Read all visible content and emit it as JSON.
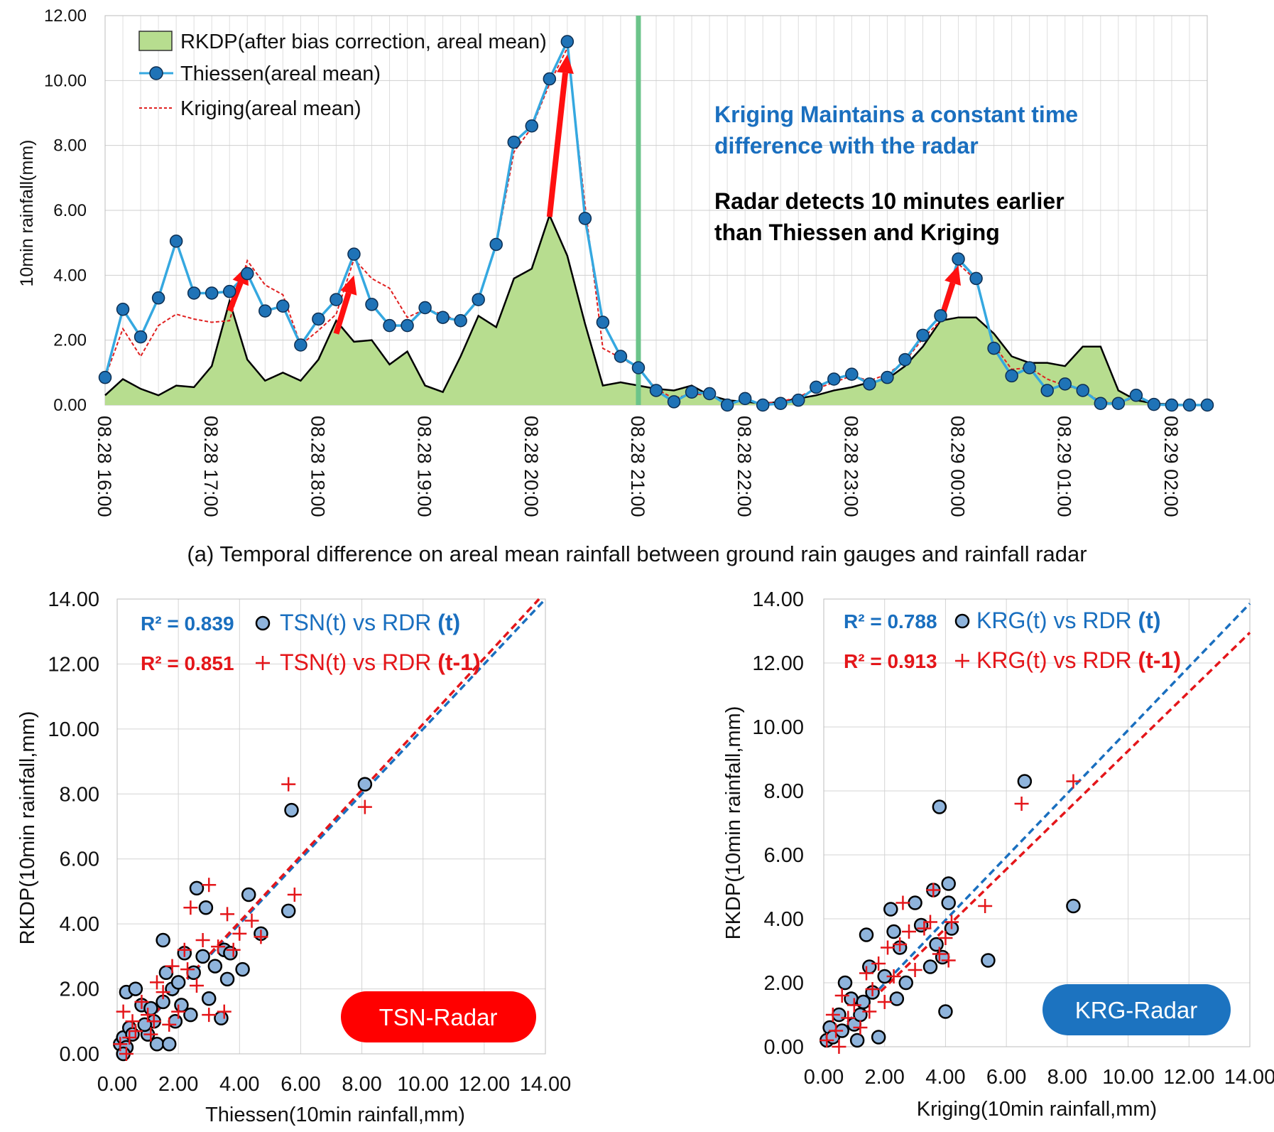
{
  "caption": "(a) Temporal difference on areal mean rainfall between ground rain gauges and rainfall radar",
  "colors": {
    "rkdp_fill": "#b7dd8f",
    "rkdp_line": "#000000",
    "thiessen": "#35a8e0",
    "thiessen_marker": "#1f73b7",
    "kriging": "#e02020",
    "arrow": "#ff1010",
    "blue_text": "#1a6fbf",
    "red_text": "#e4161a",
    "vline": "#6cc48a",
    "tsn_badge": "#ff0000",
    "krg_badge": "#1c73c0",
    "point_fill": "#8fb4dc"
  },
  "chart_data": [
    {
      "type": "area",
      "name": "timeseries",
      "ylabel": "10min rainfall(mm)",
      "ylim": [
        0,
        12
      ],
      "yticks": [
        "0.00",
        "2.00",
        "4.00",
        "6.00",
        "8.00",
        "10.00",
        "12.00"
      ],
      "xticks": [
        "08.28 16:00",
        "08.28 17:00",
        "08.28 18:00",
        "08.28 19:00",
        "08.28 20:00",
        "08.28 21:00",
        "08.28 22:00",
        "08.28 23:00",
        "08.29 00:00",
        "08.29 01:00",
        "08.29 02:00"
      ],
      "legend": [
        "RKDP(after bias correction, areal mean)",
        "Thiessen(areal mean)",
        "Kriging(areal mean)"
      ],
      "series": [
        {
          "name": "RKDP",
          "values": [
            0.3,
            0.8,
            0.5,
            0.3,
            0.6,
            0.55,
            1.2,
            3.2,
            1.4,
            0.75,
            1.0,
            0.75,
            1.4,
            2.6,
            1.95,
            2.0,
            1.25,
            1.65,
            0.6,
            0.4,
            1.5,
            2.75,
            2.4,
            3.9,
            4.2,
            5.85,
            4.6,
            2.5,
            0.6,
            0.7,
            0.6,
            0.5,
            0.45,
            0.6,
            0.3,
            0.15,
            0.1,
            0.05,
            0.1,
            0.2,
            0.3,
            0.45,
            0.55,
            0.7,
            0.8,
            1.2,
            1.8,
            2.6,
            2.7,
            2.7,
            2.2,
            1.5,
            1.3,
            1.3,
            1.2,
            1.8,
            1.8,
            0.45,
            0.15,
            0.05,
            0.02,
            0.0,
            0.0
          ]
        },
        {
          "name": "Thiessen",
          "values": [
            0.85,
            2.95,
            2.1,
            3.3,
            5.05,
            3.45,
            3.45,
            3.5,
            4.05,
            2.9,
            3.05,
            1.85,
            2.65,
            3.25,
            4.65,
            3.1,
            2.45,
            2.45,
            3.0,
            2.7,
            2.6,
            3.25,
            4.95,
            8.1,
            8.6,
            10.05,
            11.2,
            5.75,
            2.55,
            1.5,
            1.15,
            0.45,
            0.1,
            0.4,
            0.35,
            0.0,
            0.2,
            0.0,
            0.05,
            0.15,
            0.55,
            0.8,
            0.95,
            0.65,
            0.85,
            1.4,
            2.15,
            2.75,
            4.5,
            3.9,
            1.75,
            0.9,
            1.15,
            0.45,
            0.65,
            0.45,
            0.05,
            0.05,
            0.3,
            0.02,
            0.0,
            0.0,
            0.0
          ]
        },
        {
          "name": "Kriging",
          "values": [
            0.85,
            2.35,
            1.5,
            2.45,
            2.8,
            2.65,
            2.55,
            2.6,
            4.45,
            3.7,
            3.4,
            1.85,
            2.3,
            2.8,
            4.5,
            3.9,
            3.6,
            2.7,
            2.95,
            2.8,
            2.55,
            3.3,
            4.9,
            7.8,
            8.55,
            9.9,
            11.0,
            6.15,
            1.75,
            1.45,
            1.15,
            0.5,
            0.2,
            0.35,
            0.3,
            0.05,
            0.15,
            0.05,
            0.1,
            0.25,
            0.5,
            0.7,
            0.9,
            0.75,
            0.95,
            1.35,
            2.05,
            2.6,
            4.35,
            3.85,
            1.85,
            1.1,
            1.15,
            0.8,
            0.6,
            0.45,
            0.1,
            0.05,
            0.25,
            0.05,
            0.0,
            0.0,
            0.0
          ]
        }
      ],
      "vline_at": 30,
      "arrows": [
        {
          "from": [
            7,
            2.9
          ],
          "to": [
            8,
            4.3
          ]
        },
        {
          "from": [
            13,
            2.2
          ],
          "to": [
            14,
            4.0
          ]
        },
        {
          "from": [
            25,
            5.8
          ],
          "to": [
            26,
            10.8
          ]
        },
        {
          "from": [
            47,
            2.6
          ],
          "to": [
            48,
            4.3
          ]
        }
      ],
      "annotations": {
        "blue_line1": "Kriging Maintains a constant time",
        "blue_line2": "difference with the radar",
        "black_line1": "Radar detects 10 minutes earlier",
        "black_line2": "than Thiessen and Kriging"
      }
    },
    {
      "type": "scatter",
      "name": "tsn",
      "xlabel": "Thiessen(10min rainfall,mm)",
      "ylabel": "RKDP(10min rainfall,mm)",
      "xlim": [
        0,
        14
      ],
      "ylim": [
        0,
        14
      ],
      "ticks": [
        "0.00",
        "2.00",
        "4.00",
        "6.00",
        "8.00",
        "10.00",
        "12.00",
        "14.00"
      ],
      "badge": "TSN-Radar",
      "legend": [
        {
          "r2": "R² = 0.839",
          "label": "TSN(t) vs RDR ",
          "suffix": "(t)"
        },
        {
          "r2": "R² = 0.851",
          "label": "TSN(t) vs RDR ",
          "suffix": "(t-1)"
        }
      ],
      "trend": [
        {
          "series": "t",
          "slope": 1.0,
          "intercept": 0.0
        },
        {
          "series": "t-1",
          "slope": 1.015,
          "intercept": 0.0
        }
      ],
      "series": [
        {
          "name": "TSN(t) vs RDR (t)",
          "points": [
            [
              0.1,
              0.3
            ],
            [
              0.2,
              0.5
            ],
            [
              0.3,
              0.2
            ],
            [
              0.4,
              0.8
            ],
            [
              0.5,
              0.6
            ],
            [
              0.3,
              1.9
            ],
            [
              0.6,
              2.0
            ],
            [
              0.8,
              1.5
            ],
            [
              1.0,
              0.6
            ],
            [
              1.2,
              1.0
            ],
            [
              1.3,
              0.3
            ],
            [
              1.5,
              1.6
            ],
            [
              1.5,
              3.5
            ],
            [
              1.6,
              2.5
            ],
            [
              1.7,
              0.3
            ],
            [
              1.8,
              2.0
            ],
            [
              2.0,
              2.2
            ],
            [
              2.2,
              3.1
            ],
            [
              2.4,
              1.2
            ],
            [
              2.5,
              2.5
            ],
            [
              2.6,
              5.1
            ],
            [
              2.8,
              3.0
            ],
            [
              2.9,
              4.5
            ],
            [
              3.0,
              1.7
            ],
            [
              3.2,
              2.7
            ],
            [
              3.4,
              1.1
            ],
            [
              3.5,
              3.2
            ],
            [
              3.6,
              2.3
            ],
            [
              3.7,
              3.1
            ],
            [
              4.1,
              2.6
            ],
            [
              4.3,
              4.9
            ],
            [
              4.7,
              3.7
            ],
            [
              5.6,
              4.4
            ],
            [
              5.7,
              7.5
            ],
            [
              8.1,
              8.3
            ],
            [
              0.2,
              0.0
            ],
            [
              0.9,
              0.9
            ],
            [
              1.1,
              1.4
            ],
            [
              2.1,
              1.5
            ],
            [
              1.9,
              1.0
            ]
          ]
        },
        {
          "name": "TSN(t) vs RDR (t-1)",
          "points": [
            [
              0.1,
              0.3
            ],
            [
              0.2,
              1.3
            ],
            [
              0.4,
              0.5
            ],
            [
              0.5,
              1.0
            ],
            [
              0.6,
              0.7
            ],
            [
              0.8,
              1.6
            ],
            [
              1.0,
              1.2
            ],
            [
              1.2,
              1.0
            ],
            [
              1.3,
              2.2
            ],
            [
              1.5,
              1.9
            ],
            [
              1.7,
              0.9
            ],
            [
              1.8,
              2.7
            ],
            [
              2.0,
              1.3
            ],
            [
              2.2,
              3.2
            ],
            [
              2.4,
              4.5
            ],
            [
              2.6,
              2.1
            ],
            [
              2.8,
              3.5
            ],
            [
              3.0,
              5.2
            ],
            [
              3.0,
              1.2
            ],
            [
              3.3,
              3.3
            ],
            [
              3.5,
              1.3
            ],
            [
              3.6,
              4.3
            ],
            [
              3.8,
              3.2
            ],
            [
              4.0,
              3.7
            ],
            [
              4.4,
              4.1
            ],
            [
              4.7,
              3.6
            ],
            [
              5.6,
              8.3
            ],
            [
              5.8,
              4.9
            ],
            [
              8.1,
              7.6
            ],
            [
              0.3,
              0.0
            ],
            [
              1.1,
              0.6
            ],
            [
              2.3,
              2.6
            ]
          ]
        }
      ]
    },
    {
      "type": "scatter",
      "name": "krg",
      "xlabel": "Kriging(10min rainfall,mm)",
      "ylabel": "RKDP(10min rainfall,mm)",
      "xlim": [
        0,
        14
      ],
      "ylim": [
        0,
        14
      ],
      "ticks": [
        "0.00",
        "2.00",
        "4.00",
        "6.00",
        "8.00",
        "10.00",
        "12.00",
        "14.00"
      ],
      "badge": "KRG-Radar",
      "legend": [
        {
          "r2": "R² = 0.788",
          "label": "KRG(t)  vs RDR ",
          "suffix": "(t)"
        },
        {
          "r2": "R² = 0.913",
          "label": "KRG(t)  vs RDR ",
          "suffix": "(t-1)"
        }
      ],
      "trend": [
        {
          "series": "t",
          "slope": 0.99,
          "intercept": 0.0
        },
        {
          "series": "t-1",
          "slope": 0.925,
          "intercept": 0.0
        }
      ],
      "series": [
        {
          "name": "KRG(t) vs RDR (t)",
          "points": [
            [
              0.1,
              0.2
            ],
            [
              0.2,
              0.6
            ],
            [
              0.3,
              0.3
            ],
            [
              0.5,
              1.0
            ],
            [
              0.6,
              0.5
            ],
            [
              0.7,
              2.0
            ],
            [
              0.9,
              1.5
            ],
            [
              1.0,
              0.7
            ],
            [
              1.2,
              1.0
            ],
            [
              1.4,
              3.5
            ],
            [
              1.5,
              2.5
            ],
            [
              1.6,
              1.7
            ],
            [
              1.8,
              0.3
            ],
            [
              2.0,
              2.2
            ],
            [
              2.2,
              4.3
            ],
            [
              2.3,
              3.6
            ],
            [
              2.5,
              3.1
            ],
            [
              2.7,
              2.0
            ],
            [
              3.0,
              4.5
            ],
            [
              3.2,
              3.8
            ],
            [
              3.5,
              2.5
            ],
            [
              3.6,
              4.9
            ],
            [
              3.7,
              3.2
            ],
            [
              3.8,
              7.5
            ],
            [
              3.9,
              2.8
            ],
            [
              4.0,
              1.1
            ],
            [
              4.1,
              5.1
            ],
            [
              4.1,
              4.5
            ],
            [
              4.2,
              3.7
            ],
            [
              5.4,
              2.7
            ],
            [
              6.6,
              8.3
            ],
            [
              8.2,
              4.4
            ],
            [
              1.3,
              1.4
            ],
            [
              1.1,
              0.2
            ],
            [
              2.4,
              1.5
            ]
          ]
        },
        {
          "name": "KRG(t) vs RDR (t-1)",
          "points": [
            [
              0.1,
              0.2
            ],
            [
              0.3,
              1.0
            ],
            [
              0.4,
              0.5
            ],
            [
              0.6,
              1.6
            ],
            [
              0.8,
              0.9
            ],
            [
              1.0,
              1.3
            ],
            [
              1.2,
              0.6
            ],
            [
              1.4,
              2.3
            ],
            [
              1.6,
              1.8
            ],
            [
              1.8,
              2.6
            ],
            [
              2.0,
              1.4
            ],
            [
              2.1,
              3.1
            ],
            [
              2.3,
              2.2
            ],
            [
              2.5,
              3.2
            ],
            [
              2.6,
              4.5
            ],
            [
              2.8,
              3.6
            ],
            [
              3.0,
              2.4
            ],
            [
              3.3,
              3.7
            ],
            [
              3.5,
              3.9
            ],
            [
              3.6,
              4.9
            ],
            [
              3.8,
              2.9
            ],
            [
              4.0,
              3.4
            ],
            [
              4.2,
              3.9
            ],
            [
              4.1,
              2.7
            ],
            [
              5.3,
              4.4
            ],
            [
              6.5,
              7.6
            ],
            [
              8.2,
              8.3
            ],
            [
              0.5,
              0.0
            ],
            [
              1.5,
              1.1
            ]
          ]
        }
      ]
    }
  ]
}
